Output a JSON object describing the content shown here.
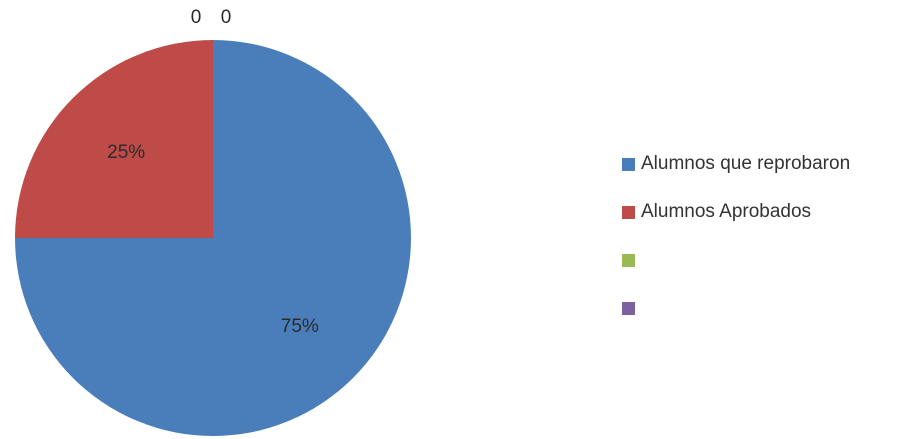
{
  "chart_data": {
    "type": "pie",
    "series": [
      {
        "name": "Alumnos que reprobaron",
        "value": 75,
        "label": "75%",
        "color": "#4A7EBB"
      },
      {
        "name": "Alumnos Aprobados",
        "value": 25,
        "label": "25%",
        "color": "#BE4B48"
      },
      {
        "name": "",
        "value": 0,
        "label": "0",
        "color": "#98B954"
      },
      {
        "name": "",
        "value": 0,
        "label": "0",
        "color": "#7D60A0"
      }
    ],
    "legend_position": "right"
  }
}
